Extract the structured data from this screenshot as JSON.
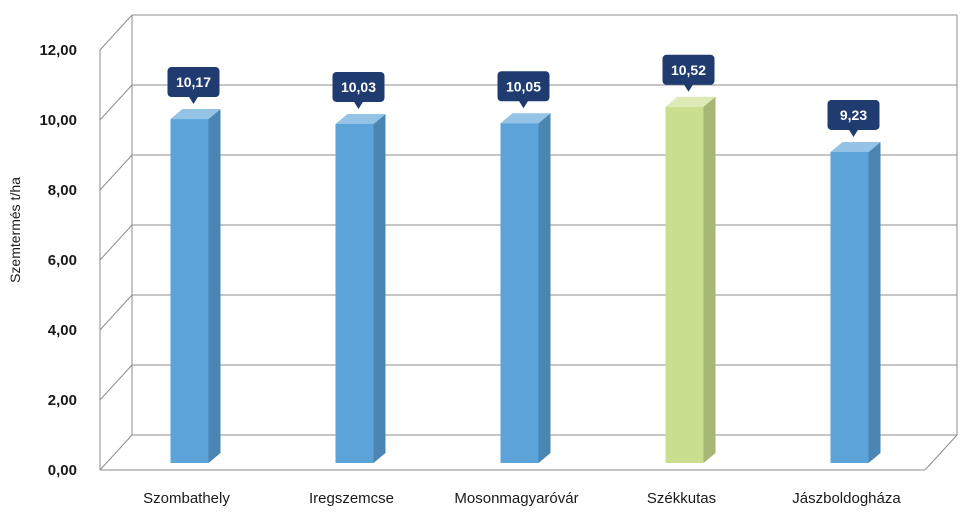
{
  "chart_data": {
    "type": "bar",
    "title": "",
    "xlabel": "",
    "ylabel": "Szemtermés t/ha",
    "categories": [
      "Szombathely",
      "Iregszemcse",
      "Mosonmagyaróvár",
      "Székkutas",
      "Jászboldogháza"
    ],
    "values": [
      10.17,
      10.03,
      10.05,
      10.52,
      9.23
    ],
    "data_labels": [
      "10,17",
      "10,03",
      "10,05",
      "10,52",
      "9,23"
    ],
    "y_ticks": [
      "0,00",
      "2,00",
      "4,00",
      "6,00",
      "8,00",
      "10,00",
      "12,00"
    ],
    "ylim": [
      0,
      12
    ],
    "grid": true,
    "legend": "none",
    "bar_colors": [
      "#5ba3d9",
      "#5ba3d9",
      "#5ba3d9",
      "#c9de8f",
      "#5ba3d9"
    ],
    "label_bg_color": "#1f3b6f"
  }
}
